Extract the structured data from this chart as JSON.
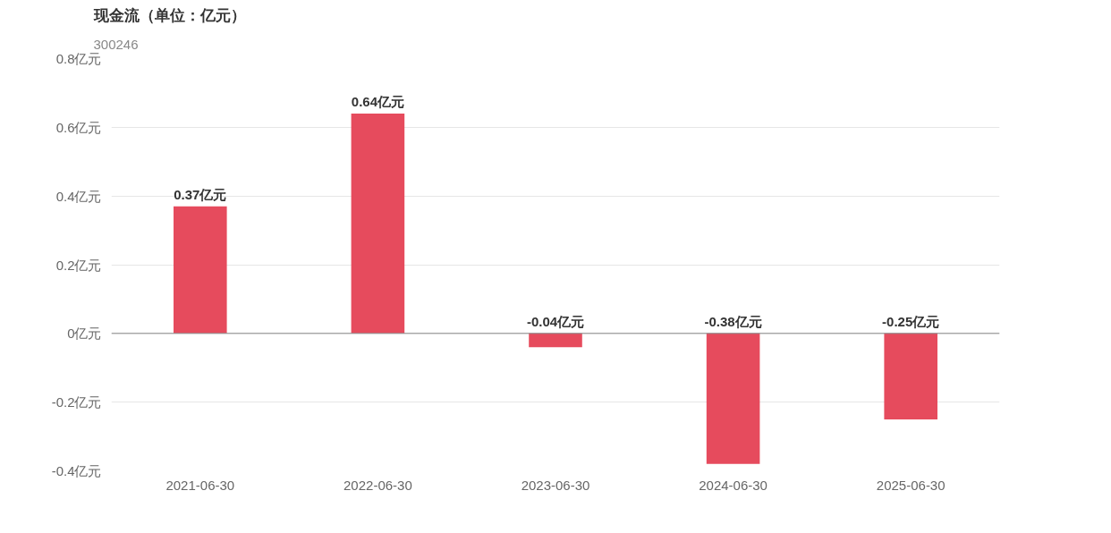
{
  "chart_data": {
    "type": "bar",
    "title": "现金流（单位：亿元）",
    "subtitle": "300246",
    "categories": [
      "2021-06-30",
      "2022-06-30",
      "2023-06-30",
      "2024-06-30",
      "2025-06-30"
    ],
    "series": [
      {
        "color": "#e64b5d",
        "values": [
          0.37,
          0.64,
          -0.04,
          -0.38,
          -0.25
        ],
        "value_labels": [
          "0.37亿元",
          "0.64亿元",
          "-0.04亿元",
          "-0.38亿元",
          "-0.25亿元"
        ]
      }
    ],
    "ylim": [
      -0.4,
      0.8
    ],
    "yticks": [
      {
        "value": -0.4,
        "label": "-0.4亿元"
      },
      {
        "value": -0.2,
        "label": "-0.2亿元"
      },
      {
        "value": 0,
        "label": "0亿元"
      },
      {
        "value": 0.2,
        "label": "0.2亿元"
      },
      {
        "value": 0.4,
        "label": "0.4亿元"
      },
      {
        "value": 0.6,
        "label": "0.6亿元"
      },
      {
        "value": 0.8,
        "label": "0.8亿元"
      }
    ],
    "grid": "y"
  }
}
